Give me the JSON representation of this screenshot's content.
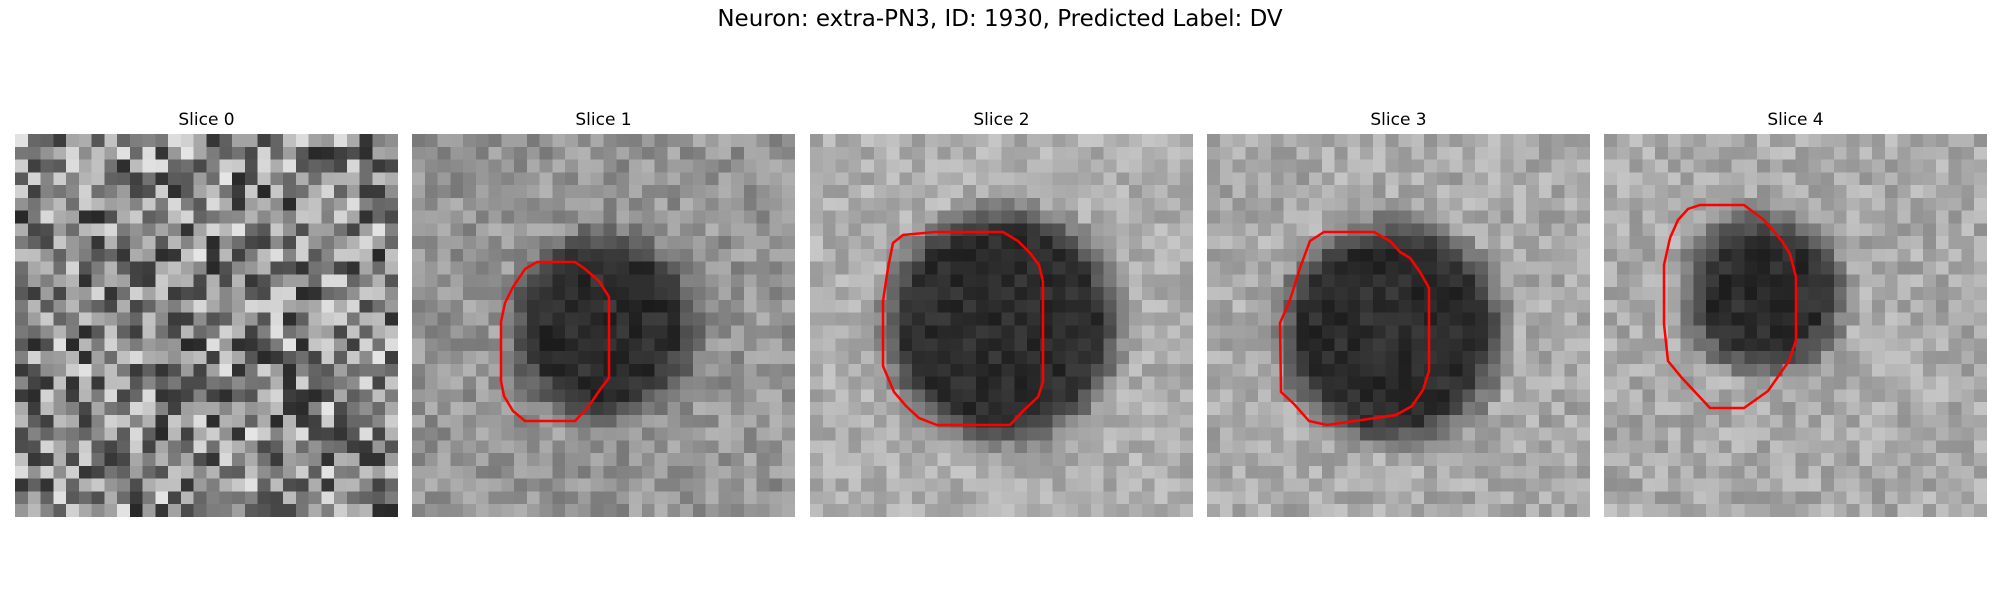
{
  "figure": {
    "title": "Neuron: extra-PN3, ID: 1930, Predicted Label: DV",
    "panels": [
      {
        "title": "Slice 0",
        "has_contour": false,
        "contour_color": "#ff0000"
      },
      {
        "title": "Slice 1",
        "has_contour": true,
        "contour_color": "#ff0000"
      },
      {
        "title": "Slice 2",
        "has_contour": true,
        "contour_color": "#ff0000"
      },
      {
        "title": "Slice 3",
        "has_contour": true,
        "contour_color": "#ff0000"
      },
      {
        "title": "Slice 4",
        "has_contour": true,
        "contour_color": "#ff0000"
      }
    ],
    "colormap": "gray"
  }
}
